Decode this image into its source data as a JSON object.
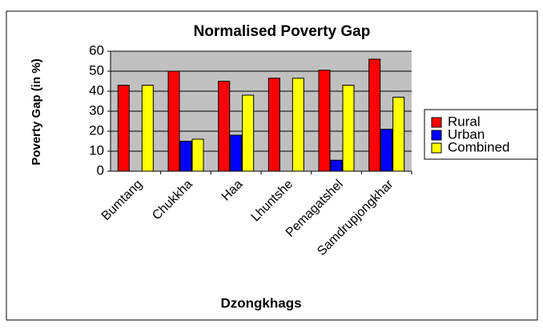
{
  "chart_data": {
    "type": "bar",
    "title": "Normalised Poverty Gap",
    "xlabel": "Dzongkhags",
    "ylabel": "Poverty Gap (in %)",
    "categories": [
      "Bumtang",
      "Chukkha",
      "Haa",
      "Lhuntshe",
      "Pemagatshel",
      "Samdrupjongkhar"
    ],
    "series": [
      {
        "name": "Rural",
        "color": "#ff0000",
        "values": [
          43,
          50,
          45,
          46.5,
          50.5,
          56
        ]
      },
      {
        "name": "Urban",
        "color": "#0000ff",
        "values": [
          null,
          15,
          18,
          null,
          5.5,
          21
        ]
      },
      {
        "name": "Combined",
        "color": "#ffff00",
        "values": [
          43,
          16,
          38,
          46.5,
          43,
          37
        ]
      }
    ],
    "ylim": [
      0,
      60
    ],
    "yticks": [
      0,
      10,
      20,
      30,
      40,
      50,
      60
    ],
    "grid": true,
    "legend": "right"
  }
}
